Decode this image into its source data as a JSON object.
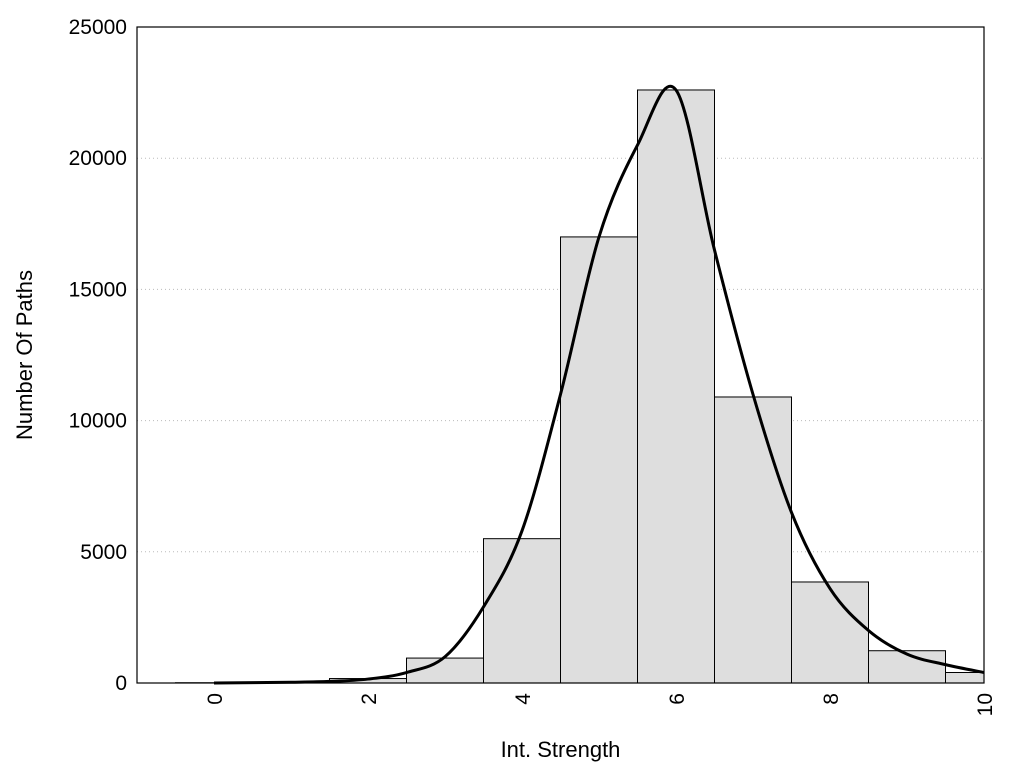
{
  "chart_data": {
    "type": "bar",
    "title": "",
    "xlabel": "Int. Strength",
    "ylabel": "Number Of Paths",
    "xlim": [
      -1,
      10
    ],
    "ylim": [
      0,
      25000
    ],
    "x_ticks": [
      "0",
      "2",
      "4",
      "6",
      "8",
      "10"
    ],
    "y_ticks": [
      "0",
      "5000",
      "10000",
      "15000",
      "20000",
      "25000"
    ],
    "grid": "horizontal dotted",
    "legend": "none",
    "colors": {
      "bar_fill": "#dedede",
      "bar_stroke": "#000000",
      "curve": "#000000",
      "grid": "#bbbbbb"
    },
    "bars": [
      {
        "x": 0,
        "value": 10
      },
      {
        "x": 1,
        "value": 20
      },
      {
        "x": 2,
        "value": 170
      },
      {
        "x": 3,
        "value": 950
      },
      {
        "x": 4,
        "value": 5500
      },
      {
        "x": 5,
        "value": 17000
      },
      {
        "x": 6,
        "value": 22600
      },
      {
        "x": 7,
        "value": 10900
      },
      {
        "x": 8,
        "value": 3850
      },
      {
        "x": 9,
        "value": 1230
      },
      {
        "x": 10,
        "value": 400
      }
    ],
    "density_curve": {
      "x": [
        0,
        1,
        1.5,
        2,
        2.5,
        3,
        3.5,
        4,
        4.5,
        5,
        5.5,
        6,
        6.5,
        7,
        7.5,
        8,
        8.5,
        9,
        9.5,
        10
      ],
      "y": [
        0,
        30,
        60,
        150,
        400,
        1000,
        2900,
        5800,
        11000,
        17000,
        20500,
        22600,
        16500,
        11000,
        6500,
        3600,
        2000,
        1100,
        700,
        400
      ]
    }
  }
}
